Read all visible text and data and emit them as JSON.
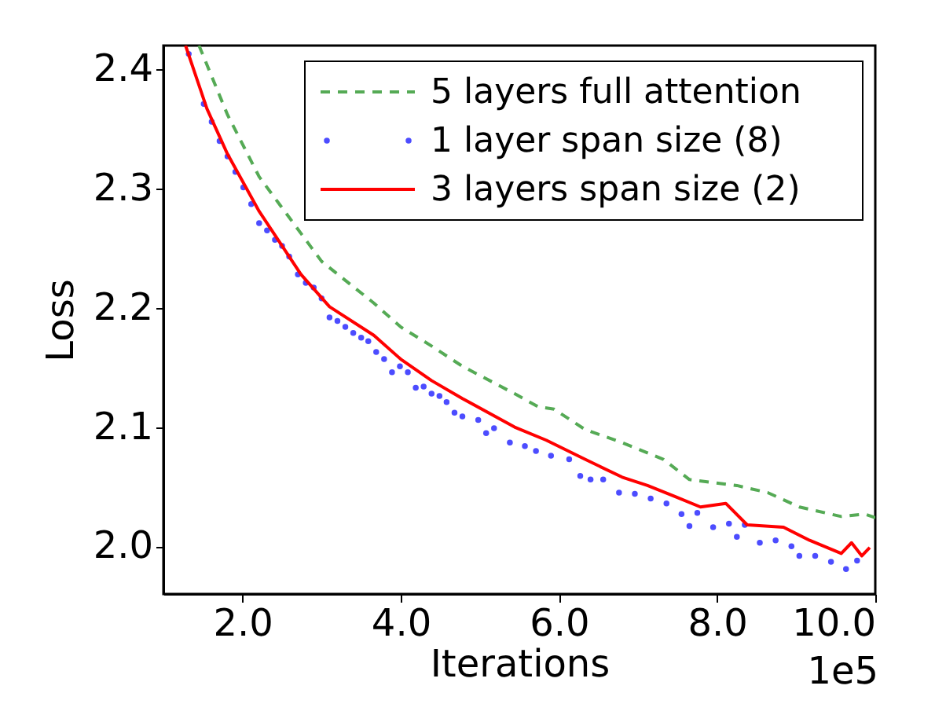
{
  "chart_data": {
    "type": "line",
    "xlabel": "Iterations",
    "ylabel": "Loss",
    "annotations": [
      "1e5"
    ],
    "xlim": [
      1.0,
      10.0
    ],
    "ylim": [
      1.96,
      2.42
    ],
    "xticks": [
      {
        "value": 2,
        "label": "2.0"
      },
      {
        "value": 4,
        "label": "4.0"
      },
      {
        "value": 6,
        "label": "6.0"
      },
      {
        "value": 8,
        "label": "8.0"
      },
      {
        "value": 10,
        "label": "10.0"
      }
    ],
    "yticks": [
      {
        "value": 2.0,
        "label": "2.0"
      },
      {
        "value": 2.1,
        "label": "2.1"
      },
      {
        "value": 2.2,
        "label": "2.2"
      },
      {
        "value": 2.3,
        "label": "2.3"
      },
      {
        "value": 2.4,
        "label": "2.4"
      }
    ],
    "grid": false,
    "legend": "top right",
    "series": [
      {
        "name": "5 layers full attention",
        "type": "line",
        "line_style": "dashed",
        "color": "#55aa55",
        "x": [
          1.45,
          1.81,
          2.21,
          3.0,
          3.66,
          4.0,
          4.39,
          4.78,
          5.44,
          5.74,
          5.94,
          6.33,
          6.8,
          7.32,
          7.65,
          8.25,
          8.64,
          9.04,
          9.57,
          9.87,
          10.0
        ],
        "values": [
          2.42,
          2.362,
          2.31,
          2.239,
          2.204,
          2.184,
          2.168,
          2.151,
          2.128,
          2.117,
          2.115,
          2.098,
          2.087,
          2.073,
          2.056,
          2.051,
          2.045,
          2.033,
          2.025,
          2.027,
          2.024
        ]
      },
      {
        "name": "1 layer span size (8)",
        "type": "scatter",
        "marker": "circle",
        "color": "#0000ff",
        "x": [
          1.32,
          1.51,
          1.61,
          1.71,
          1.81,
          1.91,
          2.01,
          2.11,
          2.21,
          2.31,
          2.41,
          2.5,
          2.59,
          2.7,
          2.8,
          2.9,
          3.0,
          3.1,
          3.2,
          3.3,
          3.4,
          3.5,
          3.59,
          3.69,
          3.79,
          3.89,
          3.99,
          4.09,
          4.19,
          4.29,
          4.39,
          4.49,
          4.58,
          4.68,
          4.78,
          4.98,
          5.08,
          5.18,
          5.38,
          5.57,
          5.71,
          5.9,
          6.13,
          6.27,
          6.4,
          6.56,
          6.76,
          6.96,
          7.16,
          7.36,
          7.55,
          7.65,
          7.75,
          7.95,
          8.15,
          8.25,
          8.35,
          8.54,
          8.74,
          8.94,
          9.04,
          9.24,
          9.44,
          9.63,
          9.77
        ],
        "values": [
          2.413,
          2.371,
          2.356,
          2.34,
          2.327,
          2.314,
          2.301,
          2.287,
          2.271,
          2.265,
          2.257,
          2.252,
          2.243,
          2.228,
          2.221,
          2.217,
          2.208,
          2.192,
          2.189,
          2.184,
          2.179,
          2.175,
          2.172,
          2.163,
          2.157,
          2.146,
          2.151,
          2.146,
          2.133,
          2.134,
          2.128,
          2.126,
          2.121,
          2.112,
          2.109,
          2.106,
          2.095,
          2.099,
          2.087,
          2.084,
          2.08,
          2.076,
          2.073,
          2.059,
          2.056,
          2.056,
          2.045,
          2.044,
          2.04,
          2.036,
          2.027,
          2.017,
          2.028,
          2.016,
          2.019,
          2.008,
          2.018,
          2.003,
          2.005,
          2.0,
          1.992,
          1.992,
          1.987,
          1.981,
          1.988
        ]
      },
      {
        "name": "3 layers span size (2)",
        "type": "line",
        "line_style": "solid",
        "color": "#ff0000",
        "x": [
          1.28,
          1.55,
          1.81,
          2.21,
          2.74,
          3.1,
          3.66,
          4.0,
          4.39,
          4.78,
          5.44,
          5.84,
          6.33,
          6.8,
          7.12,
          7.46,
          7.79,
          8.11,
          8.38,
          8.84,
          9.17,
          9.57,
          9.7,
          9.83,
          9.93
        ],
        "values": [
          2.42,
          2.367,
          2.329,
          2.281,
          2.228,
          2.201,
          2.177,
          2.157,
          2.139,
          2.124,
          2.1,
          2.089,
          2.073,
          2.058,
          2.051,
          2.042,
          2.033,
          2.036,
          2.018,
          2.016,
          2.005,
          1.994,
          2.003,
          1.992,
          1.999
        ]
      }
    ]
  }
}
